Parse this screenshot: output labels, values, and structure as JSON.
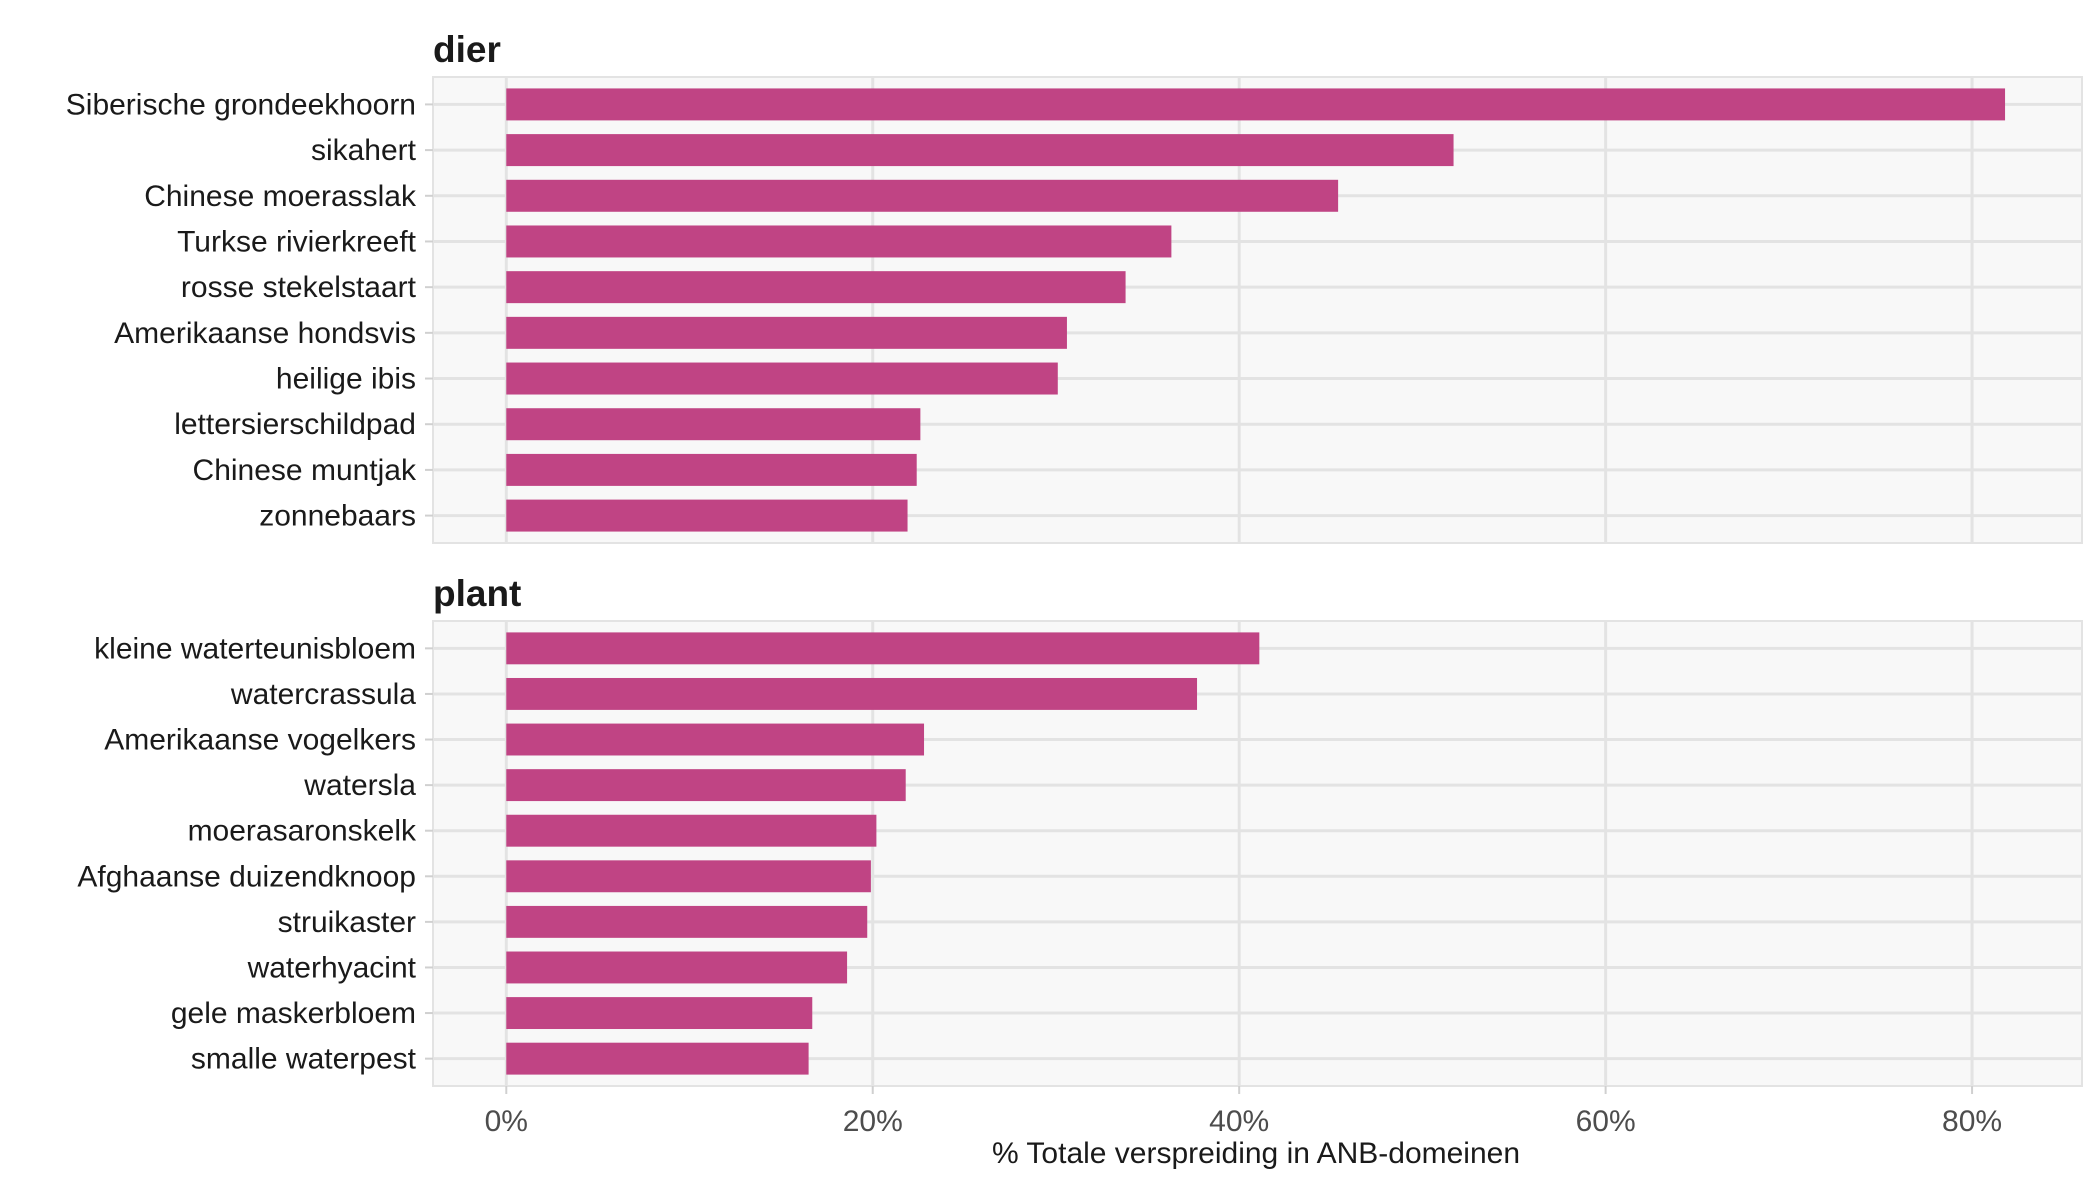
{
  "chart_data": {
    "type": "bar",
    "orientation": "horizontal",
    "xlabel": "% Totale verspreiding in ANB-domeinen",
    "xlim": [
      -4,
      86
    ],
    "xticks": [
      0,
      20,
      40,
      60,
      80
    ],
    "xtick_labels": [
      "0%",
      "20%",
      "40%",
      "60%",
      "80%"
    ],
    "grid": true,
    "bar_color": "#C04484",
    "panel_background": "#F8F8F8",
    "facets": [
      {
        "title": "dier",
        "categories": [
          "Siberische grondeekhoorn",
          "sikahert",
          "Chinese moerasslak",
          "Turkse rivierkreeft",
          "rosse stekelstaart",
          "Amerikaanse hondsvis",
          "heilige ibis",
          "lettersierschildpad",
          "Chinese muntjak",
          "zonnebaars"
        ],
        "values": [
          81.8,
          51.7,
          45.4,
          36.3,
          33.8,
          30.6,
          30.1,
          22.6,
          22.4,
          21.9
        ]
      },
      {
        "title": "plant",
        "categories": [
          "kleine waterteunisbloem",
          "watercrassula",
          "Amerikaanse vogelkers",
          "watersla",
          "moerasaronskelk",
          "Afghaanse duizendknoop",
          "struikaster",
          "waterhyacint",
          "gele maskerbloem",
          "smalle waterpest"
        ],
        "values": [
          41.1,
          37.7,
          22.8,
          21.8,
          20.2,
          19.9,
          19.7,
          18.6,
          16.7,
          16.5
        ]
      }
    ]
  }
}
